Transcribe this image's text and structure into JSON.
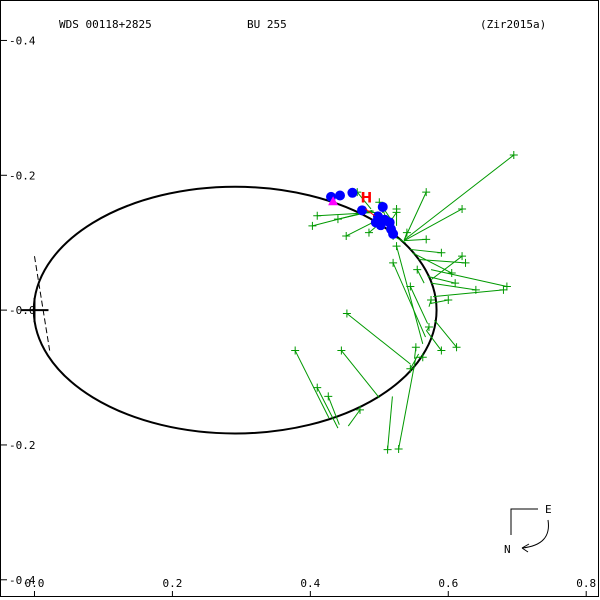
{
  "header": {
    "wds": "WDS 00118+2825",
    "discoverer": "BU  255",
    "reference": "(Zir2015a)"
  },
  "compass": {
    "east": "E",
    "north": "N"
  },
  "colors": {
    "orbit": "#000000",
    "observation": "#009900",
    "residual": "#009900",
    "highlight": "#0000ff",
    "hipparcos": "#ff0000",
    "current": "#ff00ff"
  },
  "chart_data": {
    "type": "scatter",
    "title": "",
    "xlabel": "",
    "ylabel": "",
    "xlim": [
      -0.05,
      0.82
    ],
    "ylim": [
      -0.46,
      0.43
    ],
    "x_axis_reversed": false,
    "y_axis_reversed": true,
    "grid": false,
    "x_ticks": [
      {
        "value": 0.0,
        "label": "0.0"
      },
      {
        "value": 0.2,
        "label": "0.2"
      },
      {
        "value": 0.4,
        "label": "0.4"
      },
      {
        "value": 0.6,
        "label": "0.6"
      },
      {
        "value": 0.8,
        "label": "0.8"
      }
    ],
    "y_ticks": [
      {
        "value": -0.4,
        "label": "-0.4"
      },
      {
        "value": -0.2,
        "label": "-0.2"
      },
      {
        "value": 0.0,
        "label": "-0.0"
      },
      {
        "value": 0.2,
        "label": "-0.2"
      },
      {
        "value": 0.4,
        "label": "-0.4"
      }
    ],
    "primary": [
      0.0,
      0.0
    ],
    "orbit_ellipse": {
      "cx": 0.291,
      "cy": 0.0,
      "rx": 0.292,
      "ry": 0.183
    },
    "periastron_line": [
      [
        0.0,
        -0.08
      ],
      [
        0.022,
        0.06
      ]
    ],
    "observations": [
      {
        "obs": [
          0.378,
          0.06
        ],
        "fit": [
          0.427,
          0.16
        ]
      },
      {
        "obs": [
          0.41,
          0.115
        ],
        "fit": [
          0.44,
          0.175
        ]
      },
      {
        "obs": [
          0.426,
          0.128
        ],
        "fit": [
          0.442,
          0.17
        ]
      },
      {
        "obs": [
          0.445,
          0.06
        ],
        "fit": [
          0.5,
          0.13
        ]
      },
      {
        "obs": [
          0.453,
          0.005
        ],
        "fit": [
          0.545,
          0.08
        ]
      },
      {
        "obs": [
          0.472,
          0.148
        ],
        "fit": [
          0.455,
          0.172
        ]
      },
      {
        "obs": [
          0.512,
          0.207
        ],
        "fit": [
          0.519,
          0.128
        ]
      },
      {
        "obs": [
          0.528,
          0.206
        ],
        "fit": [
          0.553,
          0.07
        ]
      },
      {
        "obs": [
          0.545,
          0.087
        ],
        "fit": [
          0.557,
          0.065
        ]
      },
      {
        "obs": [
          0.553,
          0.055
        ],
        "fit": [
          0.551,
          0.072
        ]
      },
      {
        "obs": [
          0.563,
          0.07
        ],
        "fit": [
          0.553,
          0.07
        ]
      },
      {
        "obs": [
          0.52,
          -0.07
        ],
        "fit": [
          0.567,
          0.04
        ]
      },
      {
        "obs": [
          0.525,
          -0.095
        ],
        "fit": [
          0.563,
          0.05
        ]
      },
      {
        "obs": [
          0.545,
          -0.035
        ],
        "fit": [
          0.57,
          0.02
        ]
      },
      {
        "obs": [
          0.555,
          -0.06
        ],
        "fit": [
          0.565,
          -0.04
        ]
      },
      {
        "obs": [
          0.572,
          0.025
        ],
        "fit": [
          0.569,
          0.03
        ]
      },
      {
        "obs": [
          0.575,
          -0.015
        ],
        "fit": [
          0.572,
          -0.005
        ]
      },
      {
        "obs": [
          0.59,
          0.06
        ],
        "fit": [
          0.568,
          0.03
        ]
      },
      {
        "obs": [
          0.6,
          -0.015
        ],
        "fit": [
          0.575,
          -0.01
        ]
      },
      {
        "obs": [
          0.61,
          -0.04
        ],
        "fit": [
          0.57,
          -0.05
        ]
      },
      {
        "obs": [
          0.612,
          0.055
        ],
        "fit": [
          0.58,
          0.015
        ]
      },
      {
        "obs": [
          0.62,
          -0.08
        ],
        "fit": [
          0.575,
          -0.045
        ]
      },
      {
        "obs": [
          0.64,
          -0.03
        ],
        "fit": [
          0.575,
          -0.04
        ]
      },
      {
        "obs": [
          0.68,
          -0.03
        ],
        "fit": [
          0.578,
          -0.02
        ]
      },
      {
        "obs": [
          0.685,
          -0.035
        ],
        "fit": [
          0.575,
          -0.06
        ]
      },
      {
        "obs": [
          0.5,
          -0.16
        ],
        "fit": [
          0.52,
          -0.13
        ]
      },
      {
        "obs": [
          0.525,
          -0.15
        ],
        "fit": [
          0.525,
          -0.125
        ]
      },
      {
        "obs": [
          0.52,
          -0.11
        ],
        "fit": [
          0.538,
          -0.1
        ]
      },
      {
        "obs": [
          0.54,
          -0.115
        ],
        "fit": [
          0.536,
          -0.103
        ]
      },
      {
        "obs": [
          0.468,
          -0.175
        ],
        "fit": [
          0.488,
          -0.15
        ]
      },
      {
        "obs": [
          0.44,
          -0.135
        ],
        "fit": [
          0.492,
          -0.147
        ]
      },
      {
        "obs": [
          0.403,
          -0.125
        ],
        "fit": [
          0.49,
          -0.148
        ]
      },
      {
        "obs": [
          0.41,
          -0.14
        ],
        "fit": [
          0.495,
          -0.145
        ]
      },
      {
        "obs": [
          0.452,
          -0.11
        ],
        "fit": [
          0.51,
          -0.14
        ]
      },
      {
        "obs": [
          0.485,
          -0.115
        ],
        "fit": [
          0.512,
          -0.138
        ]
      },
      {
        "obs": [
          0.568,
          -0.105
        ],
        "fit": [
          0.536,
          -0.103
        ]
      },
      {
        "obs": [
          0.568,
          -0.175
        ],
        "fit": [
          0.536,
          -0.104
        ]
      },
      {
        "obs": [
          0.62,
          -0.15
        ],
        "fit": [
          0.536,
          -0.103
        ]
      },
      {
        "obs": [
          0.695,
          -0.23
        ],
        "fit": [
          0.536,
          -0.104
        ]
      },
      {
        "obs": [
          0.59,
          -0.085
        ],
        "fit": [
          0.545,
          -0.09
        ]
      },
      {
        "obs": [
          0.625,
          -0.07
        ],
        "fit": [
          0.557,
          -0.075
        ]
      },
      {
        "obs": [
          0.605,
          -0.055
        ],
        "fit": [
          0.548,
          -0.085
        ]
      },
      {
        "obs": [
          0.505,
          -0.15
        ],
        "fit": [
          0.51,
          -0.135
        ]
      },
      {
        "obs": [
          0.525,
          -0.145
        ],
        "fit": [
          0.515,
          -0.13
        ]
      }
    ],
    "blue_points": [
      [
        0.43,
        -0.168
      ],
      [
        0.443,
        -0.17
      ],
      [
        0.461,
        -0.174
      ],
      [
        0.475,
        -0.148
      ],
      [
        0.495,
        -0.13
      ],
      [
        0.502,
        -0.126
      ],
      [
        0.505,
        -0.153
      ],
      [
        0.515,
        -0.13
      ],
      [
        0.517,
        -0.12
      ],
      [
        0.52,
        -0.113
      ],
      [
        0.498,
        -0.139
      ],
      [
        0.508,
        -0.134
      ]
    ],
    "hipparcos": {
      "point": [
        0.493,
        -0.14
      ],
      "label": "H"
    },
    "current_position": [
      0.433,
      -0.16
    ]
  }
}
